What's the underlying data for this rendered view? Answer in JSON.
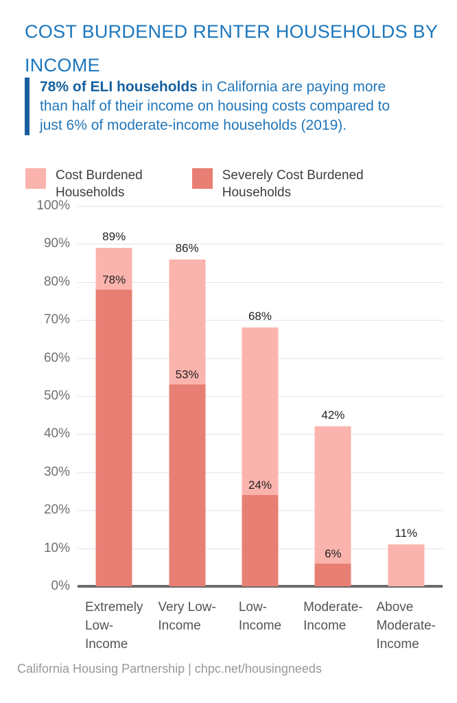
{
  "title": "COST BURDENED RENTER HOUSEHOLDS BY\nINCOME",
  "callout": {
    "bold": "78% of ELI households",
    "rest": " in California are paying more than half of their income on housing costs compared to just 6% of moderate-income households (2019)."
  },
  "legend": [
    {
      "label": "Cost Burdened\nHouseholds",
      "color": "#fbb4ad"
    },
    {
      "label": "Severely Cost Burdened\nHouseholds",
      "color": "#e87f74"
    }
  ],
  "chart_data": {
    "type": "bar",
    "stacked": true,
    "categories": [
      "Extremely\nLow-\nIncome",
      "Very Low-\nIncome",
      "Low-\nIncome",
      "Moderate-\nIncome",
      "Above\nModerate-\nIncome"
    ],
    "series": [
      {
        "name": "Cost Burdened Households",
        "color": "#fbb4ad",
        "values": [
          89,
          86,
          68,
          42,
          11
        ]
      },
      {
        "name": "Severely Cost Burdened Households",
        "color": "#e87f74",
        "values": [
          78,
          53,
          24,
          6,
          null
        ]
      }
    ],
    "value_label_suffix": "%",
    "ylabel": "",
    "xlabel": "",
    "ylim": [
      0,
      100
    ],
    "yticks": [
      "100%",
      "90%",
      "80%",
      "70%",
      "60%",
      "50%",
      "40%",
      "30%",
      "20%",
      "10%",
      "0%"
    ],
    "grid": true,
    "legend_position": "top"
  },
  "footer": "California Housing Partnership | chpc.net/housingneeds"
}
